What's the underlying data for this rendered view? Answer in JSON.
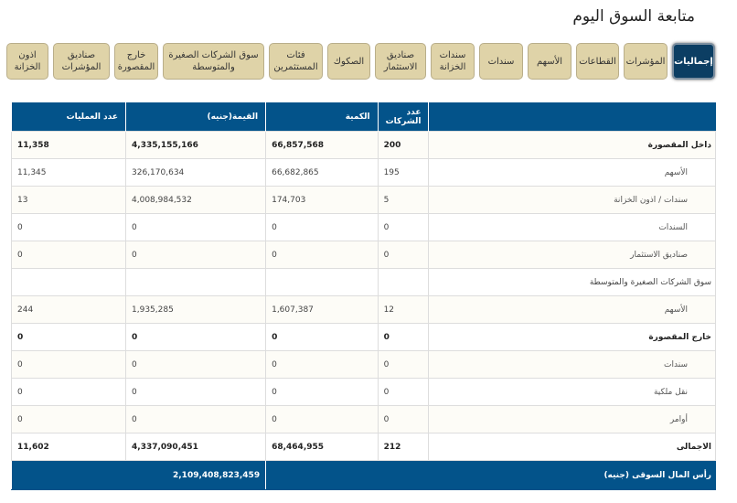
{
  "page_title": "متابعة السوق اليوم",
  "tabs": [
    {
      "label": "إجماليات",
      "active": true
    },
    {
      "label": "المؤشرات"
    },
    {
      "label": "القطاعات"
    },
    {
      "label": "الأسهم"
    },
    {
      "label": "سندات"
    },
    {
      "label": "سندات الخزانة"
    },
    {
      "label": "صناديق الاستثمار"
    },
    {
      "label": "الصكوك"
    },
    {
      "label": "فئات المستثمرين"
    },
    {
      "label": "سوق الشركات الصغيرة والمتوسطة"
    },
    {
      "label": "خارج المقصورة"
    },
    {
      "label": "صناديق المؤشرات"
    },
    {
      "label": "اذون الخزانة"
    }
  ],
  "table": {
    "headers": [
      "",
      "عدد الشركات",
      "الكمية",
      "القيمة(جنيه)",
      "عدد العمليات"
    ],
    "rows": [
      {
        "label": "داخل المقصورة",
        "companies": "200",
        "qty": "66,857,568",
        "value": "4,335,155,166",
        "ops": "11,358",
        "bold": true
      },
      {
        "label": "الأسهم",
        "companies": "195",
        "qty": "66,682,865",
        "value": "326,170,634",
        "ops": "11,345",
        "sub": true
      },
      {
        "label": "سندات / اذون الخزانة",
        "companies": "5",
        "qty": "174,703",
        "value": "4,008,984,532",
        "ops": "13",
        "sub": true
      },
      {
        "label": "السندات",
        "companies": "0",
        "qty": "0",
        "value": "0",
        "ops": "0",
        "sub": true
      },
      {
        "label": "صناديق الاستثمار",
        "companies": "0",
        "qty": "0",
        "value": "0",
        "ops": "0",
        "sub": true
      },
      {
        "label": "سوق الشركات الصغيرة والمتوسطة",
        "companies": "",
        "qty": "",
        "value": "",
        "ops": ""
      },
      {
        "label": "الأسهم",
        "companies": "12",
        "qty": "1,607,387",
        "value": "1,935,285",
        "ops": "244",
        "sub": true
      },
      {
        "label": "خارج المقصورة",
        "companies": "0",
        "qty": "0",
        "value": "0",
        "ops": "0",
        "bold": true
      },
      {
        "label": "سندات",
        "companies": "0",
        "qty": "0",
        "value": "0",
        "ops": "0",
        "sub": true
      },
      {
        "label": "نقل ملكية",
        "companies": "0",
        "qty": "0",
        "value": "0",
        "ops": "0",
        "sub": true
      },
      {
        "label": "أوامر",
        "companies": "0",
        "qty": "0",
        "value": "0",
        "ops": "0",
        "sub": true
      },
      {
        "label": "الاجمالى",
        "companies": "212",
        "qty": "68,464,955",
        "value": "4,337,090,451",
        "ops": "11,602",
        "bold": true
      }
    ],
    "footer": {
      "label": "رأس المال السوقى (جنيه)",
      "value": "2,109,408,823,459"
    }
  }
}
